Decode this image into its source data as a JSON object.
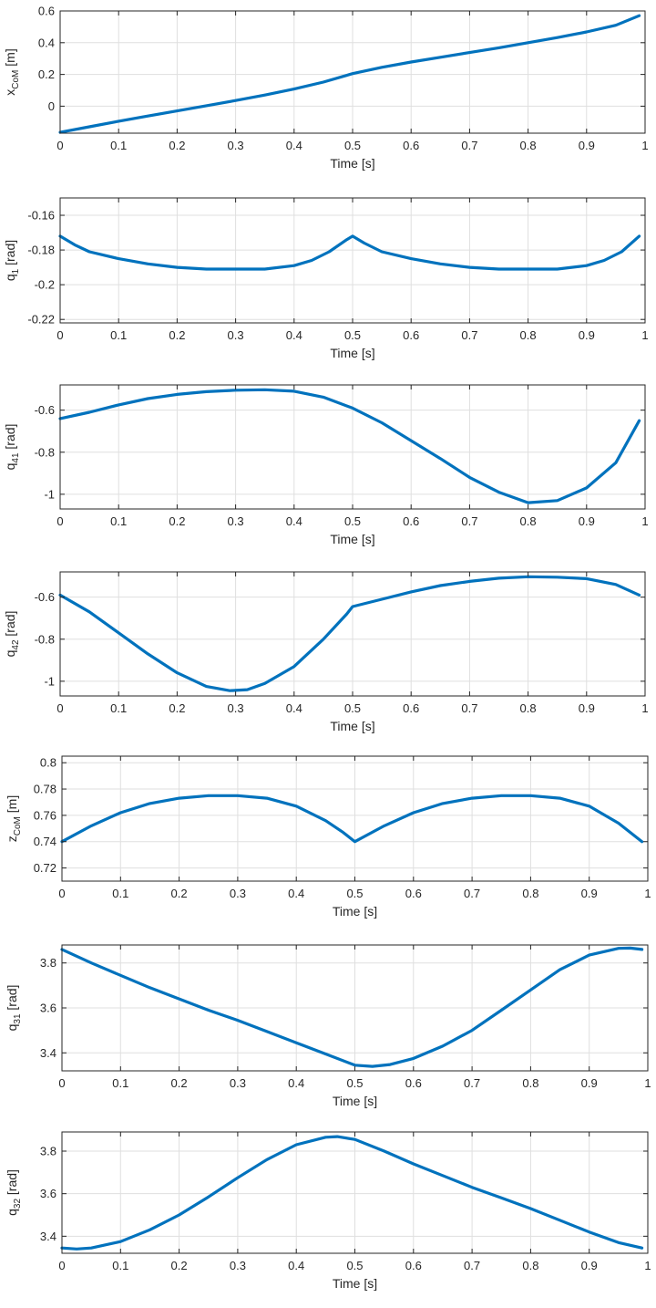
{
  "chart_data": [
    {
      "type": "line",
      "ylabel_main": "x",
      "ylabel_sub": "CoM",
      "ylabel_unit": " [m]",
      "xlabel": "Time [s]",
      "xlim": [
        0,
        1
      ],
      "ylim": [
        -0.17,
        0.6
      ],
      "xticks": [
        0,
        0.1,
        0.2,
        0.3,
        0.4,
        0.5,
        0.6,
        0.7,
        0.8,
        0.9,
        1
      ],
      "yticks": [
        0,
        0.2,
        0.4,
        0.6
      ],
      "ytick_labels": [
        "0",
        "0.2",
        "0.4",
        "0.6"
      ],
      "xtick_labels": [
        "0",
        "0.1",
        "0.2",
        "0.3",
        "0.4",
        "0.5",
        "0.6",
        "0.7",
        "0.8",
        "0.9",
        "1"
      ],
      "grid": true,
      "color": "#0072BD",
      "series": [
        {
          "x": [
            0,
            0.05,
            0.1,
            0.15,
            0.2,
            0.25,
            0.3,
            0.35,
            0.4,
            0.45,
            0.5,
            0.55,
            0.6,
            0.65,
            0.7,
            0.75,
            0.8,
            0.85,
            0.9,
            0.95,
            0.99
          ],
          "y": [
            -0.165,
            -0.13,
            -0.095,
            -0.062,
            -0.03,
            0.003,
            0.036,
            0.07,
            0.108,
            0.152,
            0.205,
            0.245,
            0.278,
            0.308,
            0.338,
            0.368,
            0.4,
            0.432,
            0.468,
            0.51,
            0.57
          ]
        }
      ]
    },
    {
      "type": "line",
      "ylabel_main": "q",
      "ylabel_sub": "1",
      "ylabel_unit": " [rad]",
      "xlabel": "Time [s]",
      "xlim": [
        0,
        1
      ],
      "ylim": [
        -0.222,
        -0.15
      ],
      "xticks": [
        0,
        0.1,
        0.2,
        0.3,
        0.4,
        0.5,
        0.6,
        0.7,
        0.8,
        0.9,
        1
      ],
      "yticks": [
        -0.16,
        -0.18,
        -0.2,
        -0.22
      ],
      "ytick_labels": [
        "-0.16",
        "-0.18",
        "-0.2",
        "-0.22"
      ],
      "xtick_labels": [
        "0",
        "0.1",
        "0.2",
        "0.3",
        "0.4",
        "0.5",
        "0.6",
        "0.7",
        "0.8",
        "0.9",
        "1"
      ],
      "grid": true,
      "color": "#0072BD",
      "series": [
        {
          "x": [
            0,
            0.025,
            0.05,
            0.1,
            0.15,
            0.2,
            0.25,
            0.3,
            0.35,
            0.4,
            0.43,
            0.46,
            0.49,
            0.5,
            0.52,
            0.55,
            0.6,
            0.65,
            0.7,
            0.75,
            0.8,
            0.85,
            0.9,
            0.93,
            0.96,
            0.99
          ],
          "y": [
            -0.172,
            -0.177,
            -0.181,
            -0.185,
            -0.188,
            -0.19,
            -0.191,
            -0.191,
            -0.191,
            -0.189,
            -0.186,
            -0.181,
            -0.174,
            -0.172,
            -0.176,
            -0.181,
            -0.185,
            -0.188,
            -0.19,
            -0.191,
            -0.191,
            -0.191,
            -0.189,
            -0.186,
            -0.181,
            -0.172
          ]
        }
      ]
    },
    {
      "type": "line",
      "ylabel_main": "q",
      "ylabel_sub": "41",
      "ylabel_unit": " [rad]",
      "xlabel": "Time [s]",
      "xlim": [
        0,
        1
      ],
      "ylim": [
        -1.07,
        -0.48
      ],
      "xticks": [
        0,
        0.1,
        0.2,
        0.3,
        0.4,
        0.5,
        0.6,
        0.7,
        0.8,
        0.9,
        1
      ],
      "yticks": [
        -0.6,
        -0.8,
        -1
      ],
      "ytick_labels": [
        "-0.6",
        "-0.8",
        "-1"
      ],
      "xtick_labels": [
        "0",
        "0.1",
        "0.2",
        "0.3",
        "0.4",
        "0.5",
        "0.6",
        "0.7",
        "0.8",
        "0.9",
        "1"
      ],
      "grid": true,
      "color": "#0072BD",
      "series": [
        {
          "x": [
            0,
            0.05,
            0.1,
            0.15,
            0.2,
            0.25,
            0.3,
            0.35,
            0.4,
            0.45,
            0.5,
            0.55,
            0.6,
            0.65,
            0.7,
            0.75,
            0.8,
            0.85,
            0.9,
            0.95,
            0.99
          ],
          "y": [
            -0.64,
            -0.61,
            -0.575,
            -0.545,
            -0.525,
            -0.512,
            -0.505,
            -0.503,
            -0.51,
            -0.538,
            -0.59,
            -0.66,
            -0.745,
            -0.83,
            -0.92,
            -0.99,
            -1.04,
            -1.03,
            -0.97,
            -0.85,
            -0.65
          ]
        }
      ]
    },
    {
      "type": "line",
      "ylabel_main": "q",
      "ylabel_sub": "42",
      "ylabel_unit": " [rad]",
      "xlabel": "Time [s]",
      "xlim": [
        0,
        1
      ],
      "ylim": [
        -1.07,
        -0.48
      ],
      "xticks": [
        0,
        0.1,
        0.2,
        0.3,
        0.4,
        0.5,
        0.6,
        0.7,
        0.8,
        0.9,
        1
      ],
      "yticks": [
        -0.6,
        -0.8,
        -1
      ],
      "ytick_labels": [
        "-0.6",
        "-0.8",
        "-1"
      ],
      "xtick_labels": [
        "0",
        "0.1",
        "0.2",
        "0.3",
        "0.4",
        "0.5",
        "0.6",
        "0.7",
        "0.8",
        "0.9",
        "1"
      ],
      "grid": true,
      "color": "#0072BD",
      "series": [
        {
          "x": [
            0,
            0.05,
            0.1,
            0.15,
            0.2,
            0.25,
            0.29,
            0.32,
            0.35,
            0.4,
            0.45,
            0.49,
            0.5,
            0.55,
            0.6,
            0.65,
            0.7,
            0.75,
            0.8,
            0.85,
            0.9,
            0.95,
            0.99
          ],
          "y": [
            -0.59,
            -0.67,
            -0.77,
            -0.87,
            -0.96,
            -1.025,
            -1.045,
            -1.04,
            -1.01,
            -0.93,
            -0.8,
            -0.68,
            -0.645,
            -0.61,
            -0.575,
            -0.545,
            -0.525,
            -0.51,
            -0.503,
            -0.505,
            -0.512,
            -0.54,
            -0.59
          ]
        }
      ]
    },
    {
      "type": "line",
      "ylabel_main": "z",
      "ylabel_sub": "CoM",
      "ylabel_unit": " [m]",
      "xlabel": "Time [s]",
      "xlim": [
        0,
        1
      ],
      "ylim": [
        0.71,
        0.805
      ],
      "xticks": [
        0,
        0.1,
        0.2,
        0.3,
        0.4,
        0.5,
        0.6,
        0.7,
        0.8,
        0.9,
        1
      ],
      "yticks": [
        0.72,
        0.74,
        0.76,
        0.78,
        0.8
      ],
      "ytick_labels": [
        "0.72",
        "0.74",
        "0.76",
        "0.78",
        "0.8"
      ],
      "xtick_labels": [
        "0",
        "0.1",
        "0.2",
        "0.3",
        "0.4",
        "0.5",
        "0.6",
        "0.7",
        "0.8",
        "0.9",
        "1"
      ],
      "grid": true,
      "color": "#0072BD",
      "series": [
        {
          "x": [
            0,
            0.05,
            0.1,
            0.15,
            0.2,
            0.25,
            0.28,
            0.3,
            0.35,
            0.4,
            0.45,
            0.48,
            0.5,
            0.55,
            0.6,
            0.65,
            0.7,
            0.75,
            0.78,
            0.8,
            0.85,
            0.9,
            0.95,
            0.99
          ],
          "y": [
            0.74,
            0.752,
            0.762,
            0.769,
            0.773,
            0.775,
            0.775,
            0.775,
            0.773,
            0.767,
            0.756,
            0.747,
            0.74,
            0.752,
            0.762,
            0.769,
            0.773,
            0.775,
            0.775,
            0.775,
            0.773,
            0.767,
            0.754,
            0.74
          ]
        }
      ]
    },
    {
      "type": "line",
      "ylabel_main": "q",
      "ylabel_sub": "31",
      "ylabel_unit": " [rad]",
      "xlabel": "Time [s]",
      "xlim": [
        0,
        1
      ],
      "ylim": [
        3.32,
        3.88
      ],
      "xticks": [
        0,
        0.1,
        0.2,
        0.3,
        0.4,
        0.5,
        0.6,
        0.7,
        0.8,
        0.9,
        1
      ],
      "yticks": [
        3.4,
        3.6,
        3.8
      ],
      "ytick_labels": [
        "3.4",
        "3.6",
        "3.8"
      ],
      "xtick_labels": [
        "0",
        "0.1",
        "0.2",
        "0.3",
        "0.4",
        "0.5",
        "0.6",
        "0.7",
        "0.8",
        "0.9",
        "1"
      ],
      "grid": true,
      "color": "#0072BD",
      "series": [
        {
          "x": [
            0,
            0.05,
            0.1,
            0.15,
            0.2,
            0.25,
            0.3,
            0.35,
            0.4,
            0.45,
            0.5,
            0.53,
            0.56,
            0.6,
            0.65,
            0.7,
            0.75,
            0.8,
            0.85,
            0.9,
            0.95,
            0.97,
            0.99
          ],
          "y": [
            3.86,
            3.8,
            3.745,
            3.69,
            3.64,
            3.59,
            3.545,
            3.495,
            3.445,
            3.395,
            3.345,
            3.34,
            3.348,
            3.375,
            3.43,
            3.5,
            3.59,
            3.68,
            3.77,
            3.835,
            3.865,
            3.866,
            3.86
          ]
        }
      ]
    },
    {
      "type": "line",
      "ylabel_main": "q",
      "ylabel_sub": "32",
      "ylabel_unit": " [rad]",
      "xlabel": "Time [s]",
      "xlim": [
        0,
        1
      ],
      "ylim": [
        3.32,
        3.89
      ],
      "xticks": [
        0,
        0.1,
        0.2,
        0.3,
        0.4,
        0.5,
        0.6,
        0.7,
        0.8,
        0.9,
        1
      ],
      "yticks": [
        3.4,
        3.6,
        3.8
      ],
      "ytick_labels": [
        "3.4",
        "3.6",
        "3.8"
      ],
      "xtick_labels": [
        "0",
        "0.1",
        "0.2",
        "0.3",
        "0.4",
        "0.5",
        "0.6",
        "0.7",
        "0.8",
        "0.9",
        "1"
      ],
      "grid": true,
      "color": "#0072BD",
      "series": [
        {
          "x": [
            0,
            0.025,
            0.05,
            0.1,
            0.15,
            0.2,
            0.25,
            0.3,
            0.35,
            0.4,
            0.45,
            0.47,
            0.5,
            0.55,
            0.6,
            0.65,
            0.7,
            0.75,
            0.8,
            0.85,
            0.9,
            0.95,
            0.99
          ],
          "y": [
            3.345,
            3.34,
            3.345,
            3.375,
            3.43,
            3.5,
            3.585,
            3.675,
            3.76,
            3.83,
            3.865,
            3.868,
            3.855,
            3.8,
            3.74,
            3.685,
            3.63,
            3.58,
            3.53,
            3.475,
            3.42,
            3.37,
            3.345
          ]
        }
      ]
    }
  ]
}
